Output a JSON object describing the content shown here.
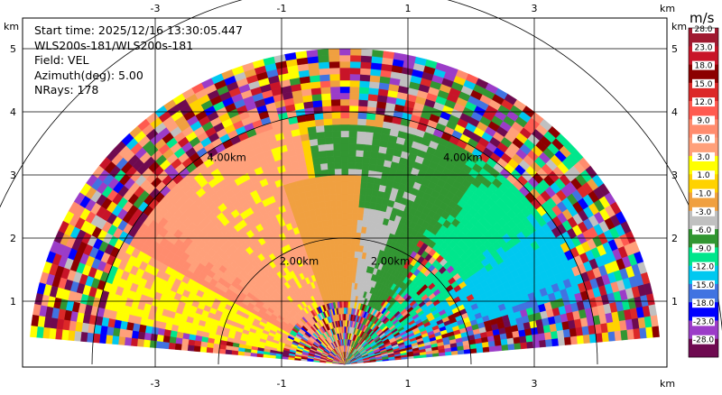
{
  "chart_data": {
    "type": "heatmap",
    "subtype": "PPI radar scan (sector, velocity field)",
    "info_lines": [
      "Start time: 2025/12/16 13:30:05.447",
      "WLS200s-181/WLS200s-181",
      "Field: VEL",
      "Azimuth(deg): 5.00",
      "NRays: 178"
    ],
    "x_unit": "km",
    "y_unit": "km",
    "xlim": [
      -5.1,
      5.1
    ],
    "ylim": [
      -0.05,
      5.5
    ],
    "x_ticks": [
      -3,
      -1,
      1,
      3
    ],
    "y_ticks": [
      1,
      2,
      3,
      4,
      5
    ],
    "grid": true,
    "range_rings": [
      {
        "range_km": 2,
        "label": "2.00km"
      },
      {
        "range_km": 4,
        "label": "4.00km"
      },
      {
        "range_km": 6,
        "label": ""
      }
    ],
    "max_range_km": 5.0,
    "sector_deg": [
      5,
      175
    ],
    "colorbar": {
      "title": "m/s",
      "position": "right",
      "levels": [
        "28.0",
        "23.0",
        "18.0",
        "15.0",
        "12.0",
        "9.0",
        "6.0",
        "3.0",
        "1.0",
        "-1.0",
        "-3.0",
        "-6.0",
        "-9.0",
        "-12.0",
        "-15.0",
        "-18.0",
        "-23.0",
        "-28.0"
      ],
      "colors": [
        "#a01930",
        "#c81428",
        "#8c0000",
        "#dc2828",
        "#ff5a50",
        "#ff8c6e",
        "#ffa07a",
        "#ffff00",
        "#ffd200",
        "#f0a040",
        "#c0c0c0",
        "#329632",
        "#00e68c",
        "#00c8f0",
        "#4173e1",
        "#0000ff",
        "#9b3cc8",
        "#6e0a50"
      ]
    },
    "velocity_field_summary": [
      {
        "region": "west (left) of scan",
        "value_ms": 6.0
      },
      {
        "region": "north-west center",
        "value_ms": 3.0
      },
      {
        "region": "center",
        "value_ms": 0.0
      },
      {
        "region": "north center",
        "value_ms": -3.0
      },
      {
        "region": "north-east",
        "value_ms": -9.0
      },
      {
        "region": "east",
        "value_ms": -15.0
      },
      {
        "region": "outer rim",
        "value_ms": "noise"
      }
    ]
  }
}
